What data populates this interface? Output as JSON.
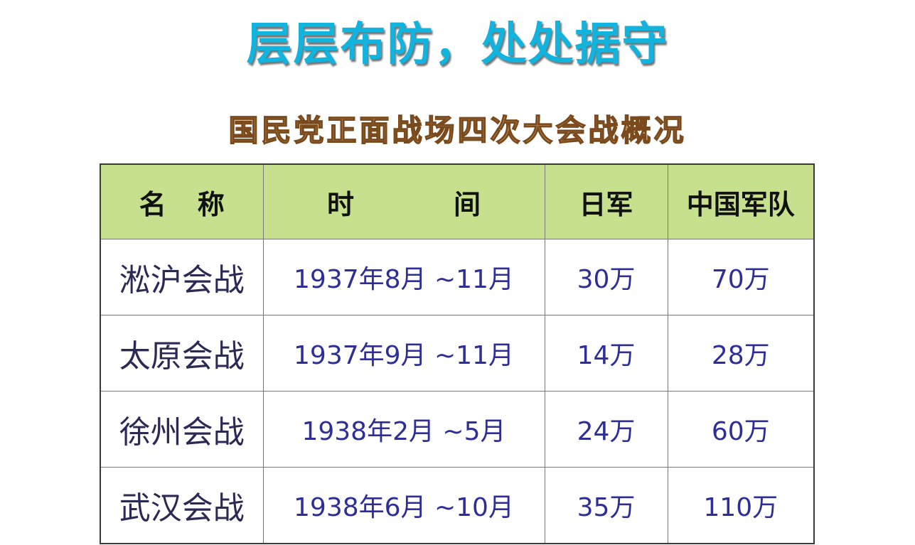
{
  "main_title": "层层布防，处处据守",
  "table_title": "国民党正面战场四次大会战概况",
  "headers": {
    "name_a": "名",
    "name_b": "称",
    "time_a": "时",
    "time_b": "间",
    "japan": "日军",
    "china": "中国军队"
  },
  "rows": [
    {
      "name": "淞沪会战",
      "time": "1937年8月 ~11月",
      "japan": "30万",
      "china": "70万"
    },
    {
      "name": "太原会战",
      "time": "1937年9月 ~11月",
      "japan": "14万",
      "china": "28万"
    },
    {
      "name": "徐州会战",
      "time": "1938年2月 ~5月",
      "japan": "24万",
      "china": "60万"
    },
    {
      "name": "武汉会战",
      "time": "1938年6月 ~10月",
      "japan": "35万",
      "china": "110万"
    }
  ],
  "colors": {
    "title": "#12b3dd",
    "subtitle": "#c9a06d",
    "header_bg": "#c6e08e",
    "cell_text": "#2e2e98"
  }
}
